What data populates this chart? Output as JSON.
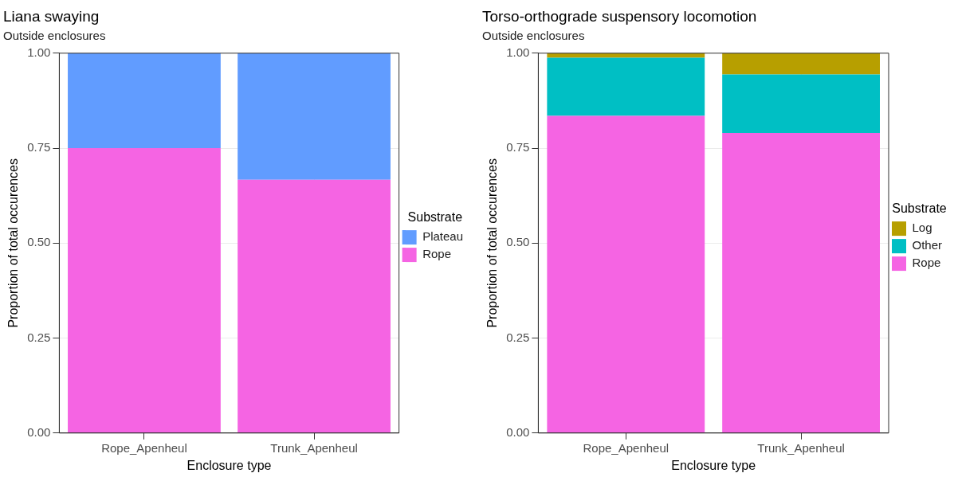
{
  "chart_data": [
    {
      "type": "bar",
      "title": "Liana swaying",
      "subtitle": "Outside enclosures",
      "xlabel": "Enclosure type",
      "ylabel": "Proportion of total occurences",
      "legend_title": "Substrate",
      "legend": "right",
      "stacked": true,
      "grid": true,
      "categories": [
        "Rope_Apenheul",
        "Trunk_Apenheul"
      ],
      "series": [
        {
          "name": "Rope",
          "color": "#f564e3",
          "values": [
            0.75,
            0.667
          ]
        },
        {
          "name": "Plateau",
          "color": "#619cff",
          "values": [
            0.25,
            0.333
          ]
        }
      ],
      "ylim": [
        0,
        1
      ],
      "yticks": [
        {
          "value": 0,
          "label": "0.00"
        },
        {
          "value": 0.25,
          "label": "0.25"
        },
        {
          "value": 0.5,
          "label": "0.50"
        },
        {
          "value": 0.75,
          "label": "0.75"
        },
        {
          "value": 1,
          "label": "1.00"
        }
      ]
    },
    {
      "type": "bar",
      "title": "Torso-orthograde suspensory locomotion",
      "subtitle": "Outside enclosures",
      "xlabel": "Enclosure type",
      "ylabel": "Proportion of total occurences",
      "legend_title": "Substrate",
      "legend": "right",
      "stacked": true,
      "grid": true,
      "categories": [
        "Rope_Apenheul",
        "Trunk_Apenheul"
      ],
      "series": [
        {
          "name": "Rope",
          "color": "#f564e3",
          "values": [
            0.835,
            0.79
          ]
        },
        {
          "name": "Other",
          "color": "#00bfc4",
          "values": [
            0.153,
            0.154
          ]
        },
        {
          "name": "Log",
          "color": "#b79f00",
          "values": [
            0.012,
            0.056
          ]
        }
      ],
      "ylim": [
        0,
        1
      ],
      "yticks": [
        {
          "value": 0,
          "label": "0.00"
        },
        {
          "value": 0.25,
          "label": "0.25"
        },
        {
          "value": 0.5,
          "label": "0.50"
        },
        {
          "value": 0.75,
          "label": "0.75"
        },
        {
          "value": 1,
          "label": "1.00"
        }
      ]
    }
  ]
}
